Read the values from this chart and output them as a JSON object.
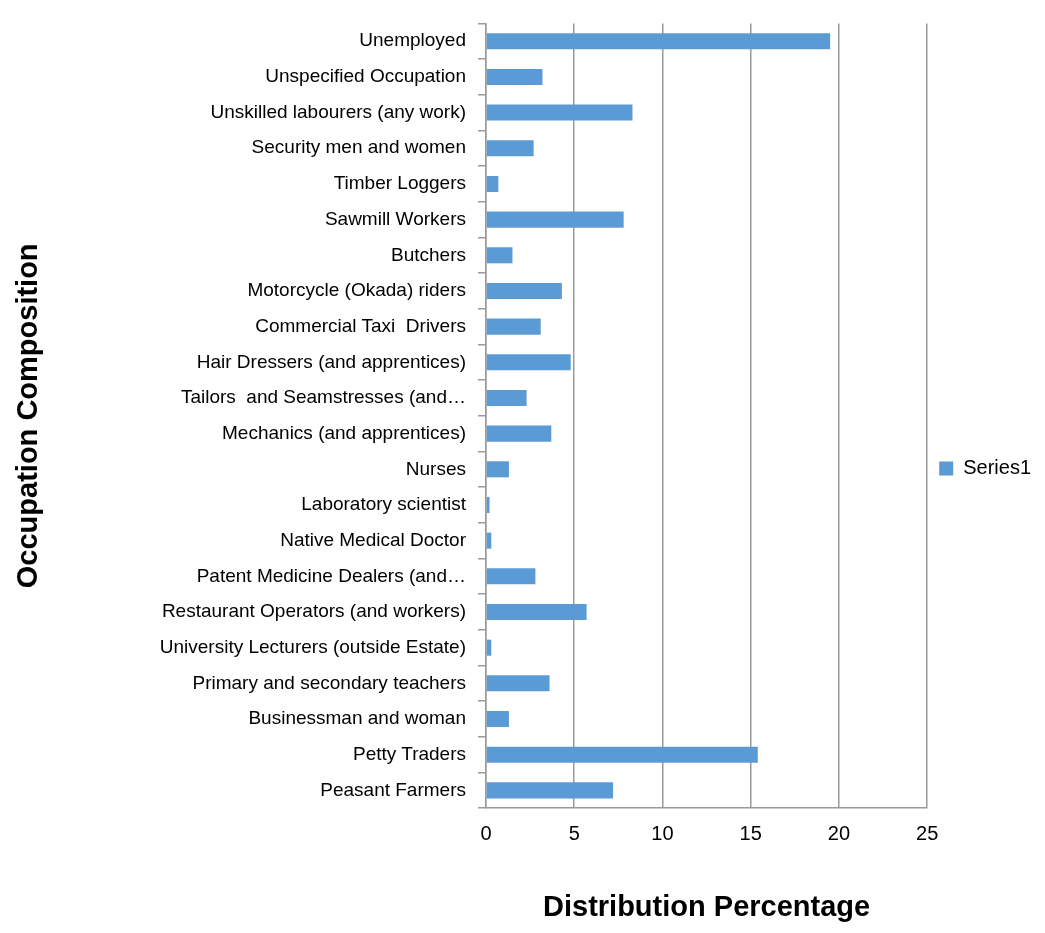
{
  "chart_data": {
    "type": "bar",
    "orientation": "horizontal",
    "xlabel": "Distribution Percentage",
    "ylabel": "Occupation Composition",
    "categories": [
      "Unemployed",
      "Unspecified Occupation",
      "Unskilled labourers (any work)",
      "Security men and women",
      "Timber Loggers",
      "Sawmill Workers",
      "Butchers",
      "Motorcycle (Okada) riders",
      "Commercial Taxi  Drivers",
      "Hair Dressers (and apprentices)",
      "Tailors  and Seamstresses (and…",
      "Mechanics (and apprentices)",
      "Nurses",
      "Laboratory scientist",
      "Native Medical Doctor",
      "Patent Medicine Dealers (and…",
      "Restaurant Operators (and workers)",
      "University Lecturers (outside Estate)",
      "Primary and secondary teachers",
      "Businessman and woman",
      "Petty Traders",
      "Peasant Farmers"
    ],
    "series": [
      {
        "name": "Series1",
        "color": "#5b9bd5",
        "values": [
          19.5,
          3.2,
          8.3,
          2.7,
          0.7,
          7.8,
          1.5,
          4.3,
          3.1,
          4.8,
          2.3,
          3.7,
          1.3,
          0.2,
          0.3,
          2.8,
          5.7,
          0.3,
          3.6,
          1.3,
          15.4,
          7.2
        ]
      }
    ],
    "xlim": [
      0,
      25
    ],
    "xticks": [
      0,
      5,
      10,
      15,
      20,
      25
    ],
    "grid": "x",
    "legend": "right"
  }
}
